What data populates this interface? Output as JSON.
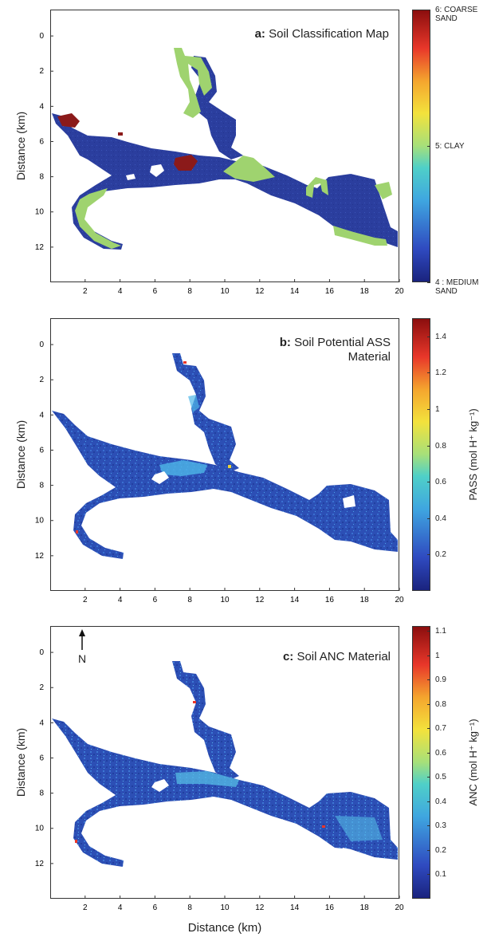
{
  "chart_data": [
    {
      "type": "heatmap",
      "title_bold": "a:",
      "title": "Soil Classification Map",
      "xlabel": "",
      "ylabel": "Distance (km)",
      "xlim": [
        0,
        20
      ],
      "ylim": [
        14,
        -1.5
      ],
      "xticks": [
        "2",
        "4",
        "6",
        "8",
        "10",
        "12",
        "14",
        "16",
        "18",
        "20"
      ],
      "yticks": [
        "0",
        "2",
        "4",
        "6",
        "8",
        "10",
        "12"
      ],
      "colorbar": {
        "min": 4,
        "max": 6,
        "ticks": [
          {
            "value": 6,
            "label": "6: COARSE\nSAND"
          },
          {
            "value": 5,
            "label": "5: CLAY"
          },
          {
            "value": 4,
            "label": "4 : MEDIUM\nSAND"
          }
        ],
        "label": ""
      }
    },
    {
      "type": "heatmap",
      "title_bold": "b:",
      "title": "Soil Potential ASS\nMaterial",
      "xlabel": "",
      "ylabel": "Distance (km)",
      "xlim": [
        0,
        20
      ],
      "ylim": [
        14,
        -1.5
      ],
      "xticks": [
        "2",
        "4",
        "6",
        "8",
        "10",
        "12",
        "14",
        "16",
        "18",
        "20"
      ],
      "yticks": [
        "0",
        "2",
        "4",
        "6",
        "8",
        "10",
        "12"
      ],
      "colorbar": {
        "min": 0,
        "max": 1.5,
        "ticks": [
          {
            "value": 1.4,
            "label": "1.4"
          },
          {
            "value": 1.2,
            "label": "1.2"
          },
          {
            "value": 1.0,
            "label": "1"
          },
          {
            "value": 0.8,
            "label": "0.8"
          },
          {
            "value": 0.6,
            "label": "0.6"
          },
          {
            "value": 0.4,
            "label": "0.4"
          },
          {
            "value": 0.2,
            "label": "0.2"
          }
        ],
        "label": "PASS (mol H⁺ kg⁻¹)"
      }
    },
    {
      "type": "heatmap",
      "title_bold": "c:",
      "title": "Soil ANC Material",
      "xlabel": "Distance (km)",
      "ylabel": "Distance (km)",
      "xlim": [
        0,
        20
      ],
      "ylim": [
        14,
        -1.5
      ],
      "xticks": [
        "2",
        "4",
        "6",
        "8",
        "10",
        "12",
        "14",
        "16",
        "18",
        "20"
      ],
      "yticks": [
        "0",
        "2",
        "4",
        "6",
        "8",
        "10",
        "12"
      ],
      "north_label": "N",
      "colorbar": {
        "min": 0,
        "max": 1.12,
        "ticks": [
          {
            "value": 1.1,
            "label": "1.1"
          },
          {
            "value": 1.0,
            "label": "1"
          },
          {
            "value": 0.9,
            "label": "0.9"
          },
          {
            "value": 0.8,
            "label": "0.8"
          },
          {
            "value": 0.7,
            "label": "0.7"
          },
          {
            "value": 0.6,
            "label": "0.6"
          },
          {
            "value": 0.5,
            "label": "0.5"
          },
          {
            "value": 0.4,
            "label": "0.4"
          },
          {
            "value": 0.3,
            "label": "0.3"
          },
          {
            "value": 0.2,
            "label": "0.2"
          },
          {
            "value": 0.1,
            "label": "0.1"
          }
        ],
        "label": "ANC (mol H⁺ kg⁻¹)"
      }
    }
  ],
  "colors": {
    "medium_sand": "#2b3e9e",
    "clay": "#9fd36f",
    "coarse_sand": "#8b1a1a",
    "low_value": "#2c4fb5",
    "mid_value": "#3fa6e0"
  }
}
